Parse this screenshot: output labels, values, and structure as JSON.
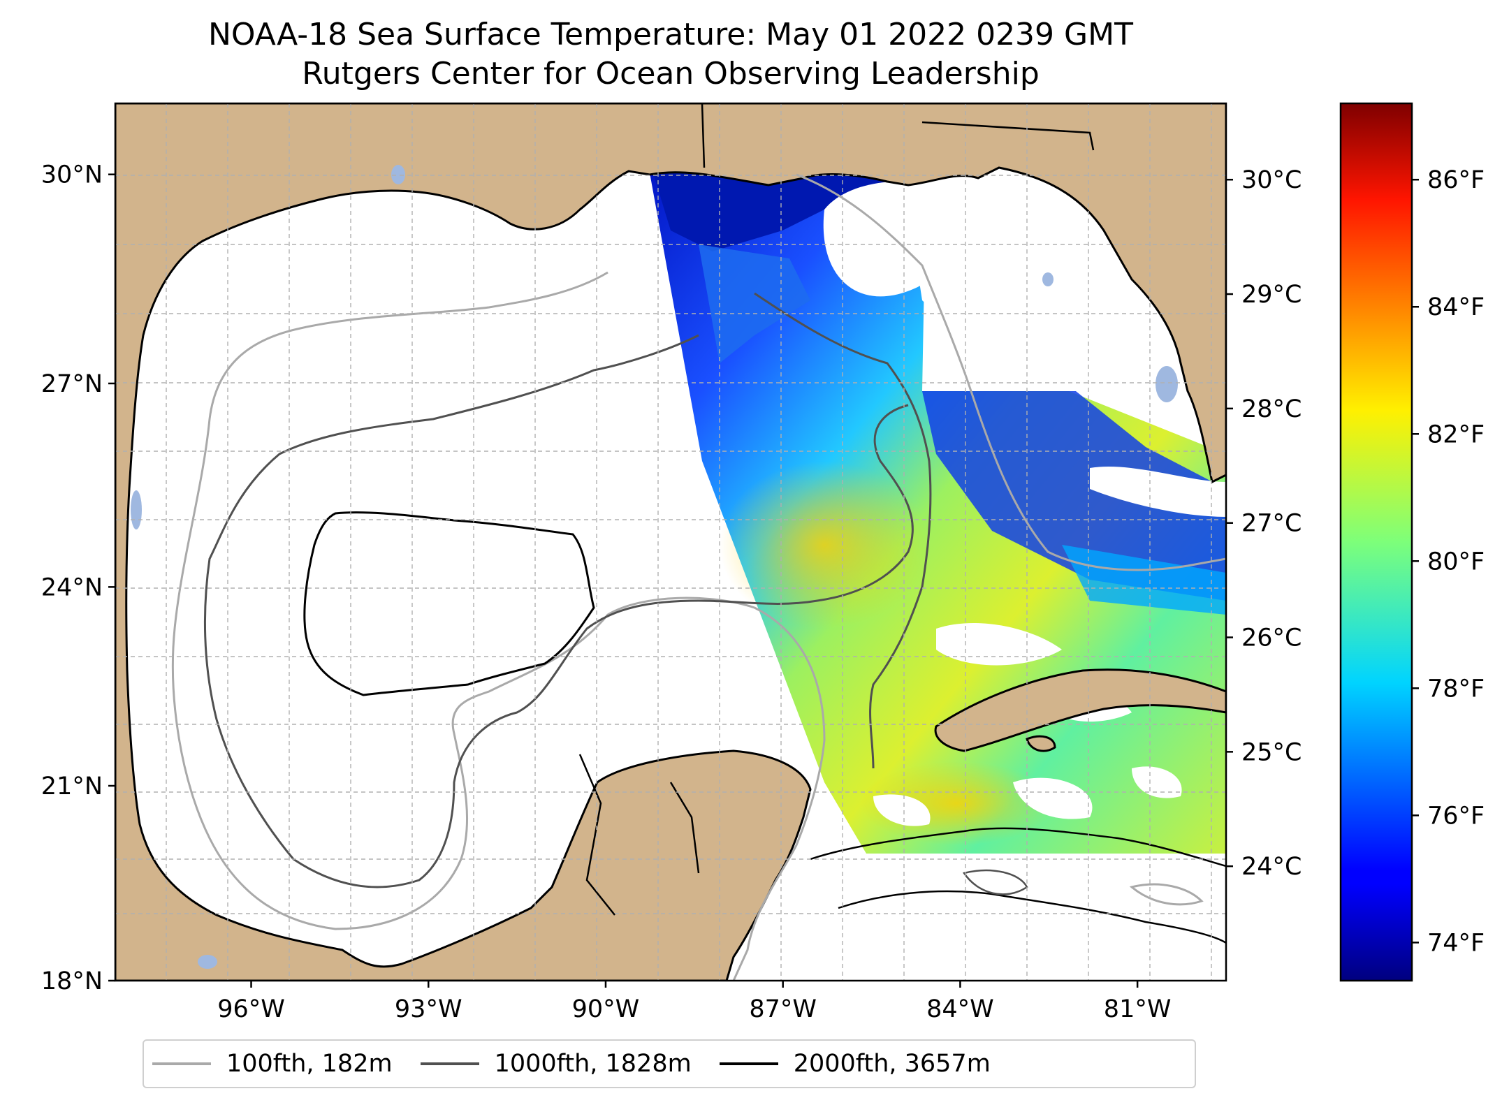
{
  "title": {
    "line1": "NOAA-18 Sea Surface Temperature: May 01 2022 0239 GMT",
    "line2": "Rutgers Center for Ocean Observing Leadership"
  },
  "map": {
    "region": "Gulf of Mexico",
    "lon_range": [
      -98.3,
      -79.5
    ],
    "lat_range": [
      18.0,
      31.0
    ],
    "latitude_ticks": [
      {
        "value": 30,
        "label": "30°N"
      },
      {
        "value": 27,
        "label": "27°N"
      },
      {
        "value": 24,
        "label": "24°N"
      },
      {
        "value": 21,
        "label": "21°N"
      },
      {
        "value": 18,
        "label": "18°N"
      }
    ],
    "longitude_ticks": [
      {
        "value": -96,
        "label": "96°W"
      },
      {
        "value": -93,
        "label": "93°W"
      },
      {
        "value": -90,
        "label": "90°W"
      },
      {
        "value": -87,
        "label": "87°W"
      },
      {
        "value": -84,
        "label": "84°W"
      },
      {
        "value": -81,
        "label": "81°W"
      }
    ],
    "gridlines": true,
    "colors": {
      "land": "#d2b48c",
      "coastline": "#000000",
      "lakes": "#9fb8e0",
      "no_data": "#ffffff"
    }
  },
  "colorbar": {
    "colormap": "jet",
    "fahrenheit_range": [
      73.4,
      87.2
    ],
    "celsius_ticks": [
      {
        "value": 30,
        "label": "30°C"
      },
      {
        "value": 29,
        "label": "29°C"
      },
      {
        "value": 28,
        "label": "28°C"
      },
      {
        "value": 27,
        "label": "27°C"
      },
      {
        "value": 26,
        "label": "26°C"
      },
      {
        "value": 25,
        "label": "25°C"
      },
      {
        "value": 24,
        "label": "24°C"
      }
    ],
    "fahrenheit_ticks": [
      {
        "value": 86,
        "label": "86°F"
      },
      {
        "value": 84,
        "label": "84°F"
      },
      {
        "value": 82,
        "label": "82°F"
      },
      {
        "value": 80,
        "label": "80°F"
      },
      {
        "value": 78,
        "label": "78°F"
      },
      {
        "value": 76,
        "label": "76°F"
      },
      {
        "value": 74,
        "label": "74°F"
      }
    ]
  },
  "legend": {
    "items": [
      {
        "label": "100fth, 182m",
        "color": "#a9a9a9"
      },
      {
        "label": "1000fth, 1828m",
        "color": "#505050"
      },
      {
        "label": "2000fth, 3657m",
        "color": "#000000"
      }
    ]
  }
}
